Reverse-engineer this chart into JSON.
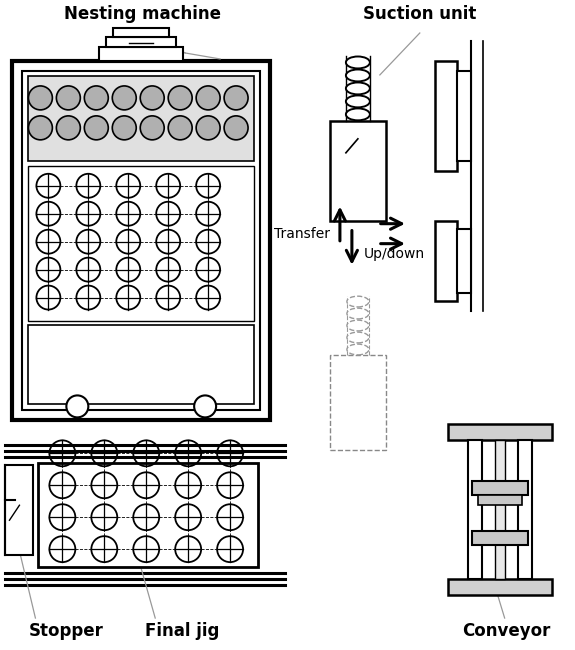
{
  "bg_color": "#ffffff",
  "line_color": "#000000",
  "labels": {
    "nesting_machine": "Nesting machine",
    "suction_unit": "Suction unit",
    "stopper": "Stopper",
    "final_jig": "Final jig",
    "conveyor": "Conveyor",
    "transfer": "Transfer",
    "updown": "Up/down"
  },
  "figsize": [
    5.75,
    6.5
  ],
  "dpi": 100
}
